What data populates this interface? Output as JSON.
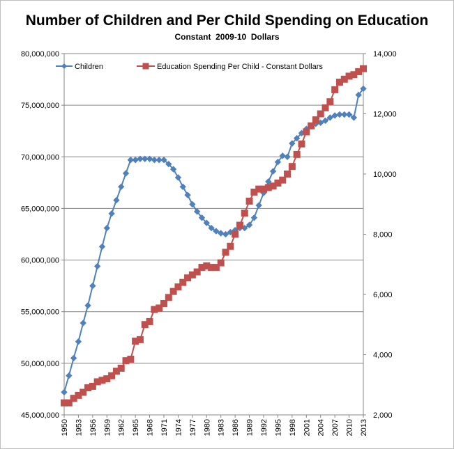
{
  "chart_data": {
    "type": "line",
    "title": "Number of Children and Per Child Spending on Education",
    "subtitle": "Constant  2009-10  Dollars",
    "xlabel": "",
    "ylabel": "",
    "grid": true,
    "legend_position": "top",
    "x": [
      1950,
      1951,
      1952,
      1953,
      1954,
      1955,
      1956,
      1957,
      1958,
      1959,
      1960,
      1961,
      1962,
      1963,
      1964,
      1965,
      1966,
      1967,
      1968,
      1969,
      1970,
      1971,
      1972,
      1973,
      1974,
      1975,
      1976,
      1977,
      1978,
      1979,
      1980,
      1981,
      1982,
      1983,
      1984,
      1985,
      1986,
      1987,
      1988,
      1989,
      1990,
      1991,
      1992,
      1993,
      1994,
      1995,
      1996,
      1997,
      1998,
      1999,
      2000,
      2001,
      2002,
      2003,
      2004,
      2005,
      2006,
      2007,
      2008,
      2009,
      2010,
      2011,
      2012,
      2013
    ],
    "x_tick_labels": [
      "1950",
      "1953",
      "1956",
      "1959",
      "1962",
      "1965",
      "1968",
      "1971",
      "1974",
      "1977",
      "1980",
      "1983",
      "1986",
      "1989",
      "1992",
      "1995",
      "1998",
      "2001",
      "2004",
      "2007",
      "2010",
      "2013"
    ],
    "y_left": {
      "ylim": [
        45000000,
        80000000
      ],
      "tick_labels": [
        "45,000,000",
        "50,000,000",
        "55,000,000",
        "60,000,000",
        "65,000,000",
        "70,000,000",
        "75,000,000",
        "80,000,000"
      ],
      "tick_values": [
        45000000,
        50000000,
        55000000,
        60000000,
        65000000,
        70000000,
        75000000,
        80000000
      ]
    },
    "y_right": {
      "ylim": [
        2000,
        14000
      ],
      "tick_labels": [
        "2,000",
        "4,000",
        "6,000",
        "8,000",
        "10,000",
        "12,000",
        "14,000"
      ],
      "tick_values": [
        2000,
        4000,
        6000,
        8000,
        10000,
        12000,
        14000
      ]
    },
    "series": [
      {
        "name": "Children",
        "axis": "left",
        "marker": "diamond",
        "color": "#4f81bd",
        "values": [
          47200000,
          48800000,
          50500000,
          52100000,
          53900000,
          55600000,
          57500000,
          59400000,
          61300000,
          63100000,
          64500000,
          65800000,
          67100000,
          68400000,
          69700000,
          69700000,
          69800000,
          69800000,
          69800000,
          69700000,
          69700000,
          69700000,
          69300000,
          68800000,
          68000000,
          67100000,
          66300000,
          65400000,
          64700000,
          64100000,
          63600000,
          63100000,
          62800000,
          62600000,
          62500000,
          62700000,
          62900000,
          63100000,
          63100000,
          63400000,
          64100000,
          65300000,
          66500000,
          67600000,
          68600000,
          69500000,
          70100000,
          70000000,
          71300000,
          71800000,
          72300000,
          72700000,
          73000000,
          73200000,
          73300000,
          73500000,
          73800000,
          74000000,
          74100000,
          74100000,
          74100000,
          73800000,
          76000000,
          76600000
        ]
      },
      {
        "name": "Education Spending Per Child - Constant Dollars",
        "axis": "right",
        "marker": "square",
        "color": "#c0504d",
        "values": [
          2400,
          2400,
          2550,
          2650,
          2750,
          2900,
          2950,
          3100,
          3150,
          3200,
          3300,
          3450,
          3550,
          3800,
          3850,
          4450,
          4500,
          5000,
          5100,
          5500,
          5550,
          5700,
          5900,
          6100,
          6250,
          6400,
          6550,
          6650,
          6750,
          6900,
          6950,
          6900,
          6900,
          7050,
          7400,
          7600,
          8000,
          8300,
          8700,
          9100,
          9400,
          9500,
          9500,
          9550,
          9600,
          9700,
          9800,
          10000,
          10250,
          10650,
          11000,
          11400,
          11600,
          11800,
          12000,
          12200,
          12400,
          12800,
          13050,
          13150,
          13250,
          13300,
          13400,
          13500
        ]
      }
    ]
  }
}
